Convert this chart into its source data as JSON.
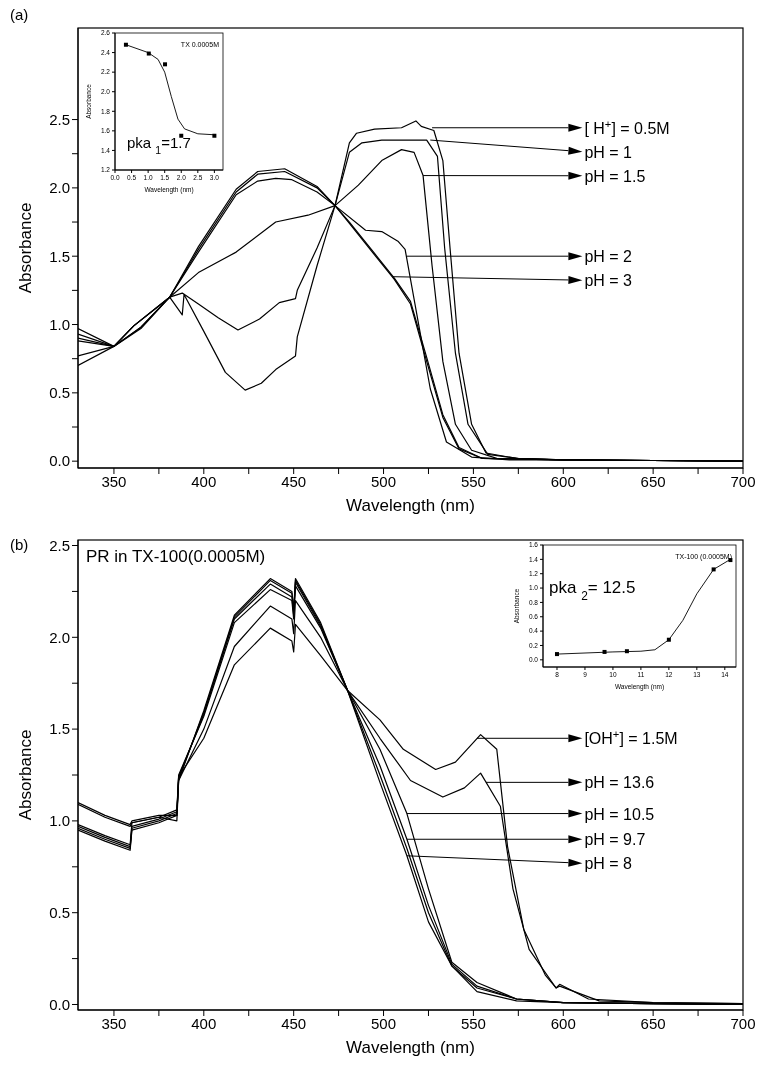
{
  "chart_data": [
    {
      "type": "line",
      "xlabel": "Wavelength (nm)",
      "ylabel": "Absorbance",
      "xlim": [
        330,
        700
      ],
      "ylim": [
        -0.05,
        3.17
      ],
      "xticks": [
        350,
        {
          "value": 375,
          "label": null
        },
        400,
        {
          "value": 425,
          "label": null
        },
        450,
        {
          "value": 475,
          "label": null
        },
        500,
        {
          "value": 525,
          "label": null
        },
        550,
        {
          "value": 575,
          "label": null
        },
        600,
        {
          "value": 625,
          "label": null
        },
        650,
        {
          "value": 675,
          "label": null
        },
        700
      ],
      "yticks": [
        {
          "value": 0,
          "label": "0.0"
        },
        {
          "value": 0.25,
          "label": null
        },
        0.5,
        {
          "value": 0.75,
          "label": null
        },
        {
          "value": 1,
          "label": "1.0"
        },
        {
          "value": 1.25,
          "label": null
        },
        1.5,
        {
          "value": 1.75,
          "label": null
        },
        {
          "value": 2,
          "label": "2.0"
        },
        {
          "value": 2.25,
          "label": null
        },
        2.5
      ],
      "annotations": [
        "(a)",
        {
          "text": "[ H$^{+}$] = 0.5M",
          "x": 527,
          "y": 2.44
        },
        {
          "text": "pH = 1",
          "x": 526,
          "y": 2.35
        },
        {
          "text": "pH = 1.5",
          "x": 522,
          "y": 2.09
        },
        {
          "text": "pH = 2",
          "x": 513,
          "y": 1.5
        },
        {
          "text": "pH = 3",
          "x": 505,
          "y": 1.35
        }
      ],
      "series": [
        {
          "color": "#000000",
          "x": [
            330,
            350,
            365,
            381,
            388,
            389,
            400,
            412,
            423,
            432,
            440,
            451,
            452,
            463,
            473,
            481,
            485,
            495,
            510,
            518,
            521,
            528,
            533,
            537,
            542,
            549,
            557,
            574,
            600,
            650,
            700
          ],
          "values": [
            0.7,
            0.84,
            0.98,
            1.2,
            1.07,
            1.22,
            0.95,
            0.65,
            0.52,
            0.57,
            0.67,
            0.77,
            0.91,
            1.43,
            1.87,
            2.33,
            2.4,
            2.43,
            2.44,
            2.49,
            2.45,
            2.42,
            2.2,
            1.56,
            0.79,
            0.27,
            0.06,
            0.02,
            0.01,
            0.005,
            0
          ]
        },
        {
          "color": "#000000",
          "x": [
            330,
            350,
            365,
            381,
            388,
            397,
            408,
            419,
            431,
            442,
            451,
            452,
            463,
            473,
            481,
            488,
            499,
            524,
            530,
            534,
            540,
            547,
            558,
            575,
            600,
            650,
            700
          ],
          "values": [
            0.77,
            0.84,
            0.97,
            1.2,
            1.23,
            1.15,
            1.05,
            0.96,
            1.04,
            1.16,
            1.19,
            1.25,
            1.56,
            1.87,
            2.26,
            2.33,
            2.35,
            2.35,
            2.23,
            1.56,
            0.79,
            0.27,
            0.05,
            0.02,
            0.01,
            0.005,
            0
          ]
        },
        {
          "color": "#000000",
          "x": [
            330,
            350,
            365,
            381,
            397,
            418,
            440,
            458,
            473,
            486,
            499,
            510,
            517,
            522,
            527,
            533,
            540,
            549,
            563,
            600,
            650,
            700
          ],
          "values": [
            0.9,
            0.84,
            0.98,
            1.2,
            1.38,
            1.53,
            1.75,
            1.8,
            1.87,
            2.02,
            2.2,
            2.28,
            2.26,
            2.09,
            1.43,
            0.73,
            0.27,
            0.08,
            0.02,
            0.01,
            0.005,
            0
          ]
        },
        {
          "color": "#000000",
          "x": [
            330,
            350,
            361,
            381,
            397,
            418,
            430,
            440,
            449,
            463,
            473,
            490,
            499,
            508,
            512,
            519,
            526,
            535,
            549,
            570,
            600,
            650,
            700
          ],
          "values": [
            0.97,
            0.84,
            0.99,
            1.2,
            1.53,
            1.95,
            2.05,
            2.07,
            2.06,
            1.97,
            1.87,
            1.69,
            1.68,
            1.61,
            1.55,
            1.04,
            0.53,
            0.14,
            0.03,
            0.01,
            0.01,
            0.005,
            0
          ]
        },
        {
          "color": "#000000",
          "x": [
            330,
            350,
            361,
            381,
            397,
            418,
            430,
            445,
            463,
            473,
            481,
            495,
            506,
            515,
            524,
            533,
            542,
            555,
            600,
            650,
            700
          ],
          "values": [
            0.93,
            0.84,
            0.99,
            1.2,
            1.55,
            1.97,
            2.1,
            2.12,
            2,
            1.87,
            1.74,
            1.51,
            1.33,
            1.15,
            0.73,
            0.32,
            0.09,
            0.02,
            0.01,
            0.005,
            0
          ]
        },
        {
          "color": "#000000",
          "x": [
            330,
            350,
            361,
            381,
            397,
            418,
            430,
            445,
            463,
            473,
            481,
            495,
            506,
            515,
            524,
            533,
            542,
            555,
            600,
            650,
            700
          ],
          "values": [
            0.88,
            0.84,
            0.99,
            1.2,
            1.57,
            1.99,
            2.12,
            2.14,
            2.01,
            1.87,
            1.75,
            1.52,
            1.34,
            1.17,
            0.76,
            0.34,
            0.1,
            0.02,
            0.01,
            0.005,
            0
          ]
        }
      ]
    },
    {
      "type": "scatter",
      "xlabel": "Wavelength (nm)",
      "ylabel": "Absorbance",
      "xlim": [
        0,
        3.26
      ],
      "ylim": [
        1.2,
        2.6
      ],
      "xticks": [
        {
          "value": 0,
          "label": "0.0"
        },
        0.5,
        {
          "value": 1,
          "label": "1.0"
        },
        1.5,
        {
          "value": 2,
          "label": "2.0"
        },
        2.5,
        {
          "value": 3,
          "label": "3.0"
        }
      ],
      "yticks": [
        1.2,
        1.4,
        1.6,
        1.8,
        {
          "value": 2,
          "label": "2.0"
        },
        2.2,
        2.4,
        2.6
      ],
      "annotations": [
        "TX 0.0005M",
        "pka $_{1}$=1.7"
      ],
      "series": [
        {
          "type": "line",
          "marker": "none",
          "color": "#000000",
          "x": [
            0.33,
            1,
            1.3,
            1.5,
            1.7,
            1.9,
            2.1,
            2.5,
            3
          ],
          "values": [
            2.48,
            2.4,
            2.33,
            2.2,
            1.95,
            1.72,
            1.62,
            1.57,
            1.56
          ]
        },
        {
          "marker": "square",
          "color": "#000000",
          "x": [
            0.33,
            1.02,
            1.51,
            2,
            3
          ],
          "values": [
            2.48,
            2.39,
            2.28,
            1.55,
            1.55
          ]
        }
      ]
    },
    {
      "type": "line",
      "xlabel": "Wavelength (nm)",
      "ylabel": "Absorbance",
      "xlim": [
        330,
        700
      ],
      "ylim": [
        -0.03,
        2.53
      ],
      "xticks": [
        350,
        {
          "value": 375,
          "label": null
        },
        400,
        {
          "value": 425,
          "label": null
        },
        450,
        {
          "value": 475,
          "label": null
        },
        500,
        {
          "value": 525,
          "label": null
        },
        550,
        {
          "value": 575,
          "label": null
        },
        600,
        {
          "value": 625,
          "label": null
        },
        650,
        {
          "value": 675,
          "label": null
        },
        700
      ],
      "yticks": [
        {
          "value": 0,
          "label": "0.0"
        },
        {
          "value": 0.25,
          "label": null
        },
        0.5,
        {
          "value": 0.75,
          "label": null
        },
        {
          "value": 1,
          "label": "1.0"
        },
        {
          "value": 1.25,
          "label": null
        },
        1.5,
        {
          "value": 1.75,
          "label": null
        },
        {
          "value": 2,
          "label": "2.0"
        },
        {
          "value": 2.25,
          "label": null
        },
        2.5
      ],
      "annotations": [
        "(b)",
        "PR in TX-100(0.0005M)",
        {
          "text": "[OH$^{+}$] = 1.5M",
          "x": 552,
          "y": 1.45
        },
        {
          "text": "pH = 13.6",
          "x": 557,
          "y": 1.21
        },
        {
          "text": "pH = 10.5",
          "x": 513,
          "y": 1.04
        },
        {
          "text": "pH = 9.7",
          "x": 513,
          "y": 0.9
        },
        {
          "text": "pH = 8",
          "x": 513,
          "y": 0.81
        }
      ],
      "series": [
        {
          "color": "#000000",
          "x": [
            330,
            345,
            359,
            360,
            375,
            385,
            386,
            400,
            417,
            437,
            449,
            450,
            451,
            465,
            480,
            498,
            511,
            529,
            540,
            554,
            563,
            569,
            578,
            590,
            596,
            598,
            614,
            650,
            700
          ],
          "values": [
            1.1,
            1.03,
            0.98,
            1,
            1.03,
            1.03,
            1.24,
            1.45,
            1.85,
            2.05,
            1.98,
            1.92,
            2.07,
            1.9,
            1.71,
            1.55,
            1.39,
            1.28,
            1.32,
            1.47,
            1.39,
            0.86,
            0.41,
            0.16,
            0.09,
            0.11,
            0.03,
            0.01,
            0.005
          ]
        },
        {
          "color": "#000000",
          "x": [
            330,
            345,
            359,
            360,
            375,
            385,
            386,
            400,
            417,
            437,
            449,
            450,
            451,
            465,
            480,
            498,
            515,
            533,
            545,
            554,
            565,
            572,
            581,
            596,
            598,
            620,
            650,
            700
          ],
          "values": [
            1.09,
            1.02,
            0.97,
            0.99,
            1.02,
            1,
            1.22,
            1.5,
            1.95,
            2.17,
            2.1,
            2.02,
            2.2,
            2,
            1.71,
            1.45,
            1.22,
            1.13,
            1.18,
            1.26,
            1.08,
            0.63,
            0.3,
            0.09,
            0.1,
            0.02,
            0.01,
            0.005
          ]
        },
        {
          "color": "#000000",
          "x": [
            330,
            345,
            359,
            360,
            375,
            385,
            386,
            400,
            417,
            437,
            449,
            450,
            451,
            465,
            480,
            498,
            513,
            525,
            538,
            552,
            574,
            600,
            650,
            700
          ],
          "values": [
            0.98,
            0.92,
            0.87,
            0.99,
            1.02,
            1.06,
            1.25,
            1.57,
            2.08,
            2.26,
            2.2,
            2.1,
            2.28,
            2.05,
            1.71,
            1.39,
            1.04,
            0.63,
            0.23,
            0.12,
            0.03,
            0.01,
            0.005,
            0
          ]
        },
        {
          "color": "#000000",
          "x": [
            330,
            345,
            359,
            360,
            375,
            385,
            386,
            400,
            417,
            437,
            449,
            450,
            451,
            465,
            480,
            498,
            513,
            525,
            538,
            552,
            574,
            600,
            650,
            700
          ],
          "values": [
            0.97,
            0.91,
            0.86,
            0.97,
            1.01,
            1.05,
            1.24,
            1.58,
            2.1,
            2.29,
            2.22,
            2.12,
            2.3,
            2.06,
            1.71,
            1.3,
            0.9,
            0.54,
            0.22,
            0.1,
            0.03,
            0.01,
            0.005,
            0
          ]
        },
        {
          "color": "#000000",
          "x": [
            330,
            345,
            359,
            360,
            375,
            385,
            386,
            400,
            417,
            437,
            449,
            450,
            451,
            465,
            480,
            498,
            513,
            525,
            538,
            552,
            574,
            600,
            650,
            700
          ],
          "values": [
            0.96,
            0.9,
            0.85,
            0.96,
            1,
            1.04,
            1.23,
            1.59,
            2.11,
            2.31,
            2.24,
            2.14,
            2.31,
            2.07,
            1.71,
            1.25,
            0.85,
            0.5,
            0.21,
            0.09,
            0.03,
            0.01,
            0.005,
            0
          ]
        },
        {
          "color": "#000000",
          "x": [
            330,
            345,
            359,
            360,
            375,
            385,
            386,
            400,
            417,
            437,
            449,
            450,
            451,
            465,
            480,
            498,
            513,
            525,
            538,
            552,
            574,
            600,
            650,
            700
          ],
          "values": [
            0.95,
            0.89,
            0.84,
            0.95,
            0.99,
            1.03,
            1.22,
            1.6,
            2.12,
            2.32,
            2.25,
            2.15,
            2.32,
            2.08,
            1.71,
            1.21,
            0.81,
            0.45,
            0.21,
            0.07,
            0.02,
            0.01,
            0.005,
            0
          ]
        }
      ]
    },
    {
      "type": "scatter",
      "xlabel": "Wavelength (nm)",
      "ylabel": "Absorbance",
      "xlim": [
        7.5,
        14.4
      ],
      "ylim": [
        -0.1,
        1.6
      ],
      "xticks": [
        8,
        9,
        10,
        11,
        12,
        13,
        14
      ],
      "yticks": [
        {
          "value": 0,
          "label": "0.0"
        },
        0.2,
        0.4,
        0.6,
        0.8,
        {
          "value": 1,
          "label": "1.0"
        },
        1.2,
        1.4,
        1.6
      ],
      "annotations": [
        "TX-100 (0.0005M)",
        "pka $_{2}$= 12.5"
      ],
      "series": [
        {
          "type": "line",
          "marker": "none",
          "color": "#000000",
          "x": [
            8,
            10,
            11,
            11.5,
            12,
            12.5,
            13,
            13.6,
            14.2
          ],
          "values": [
            0.08,
            0.11,
            0.12,
            0.14,
            0.28,
            0.55,
            0.92,
            1.26,
            1.4
          ]
        },
        {
          "marker": "square",
          "color": "#000000",
          "x": [
            8,
            9.7,
            10.5,
            12,
            13.6,
            14.2
          ],
          "values": [
            0.08,
            0.11,
            0.12,
            0.28,
            1.26,
            1.39
          ]
        }
      ]
    }
  ]
}
